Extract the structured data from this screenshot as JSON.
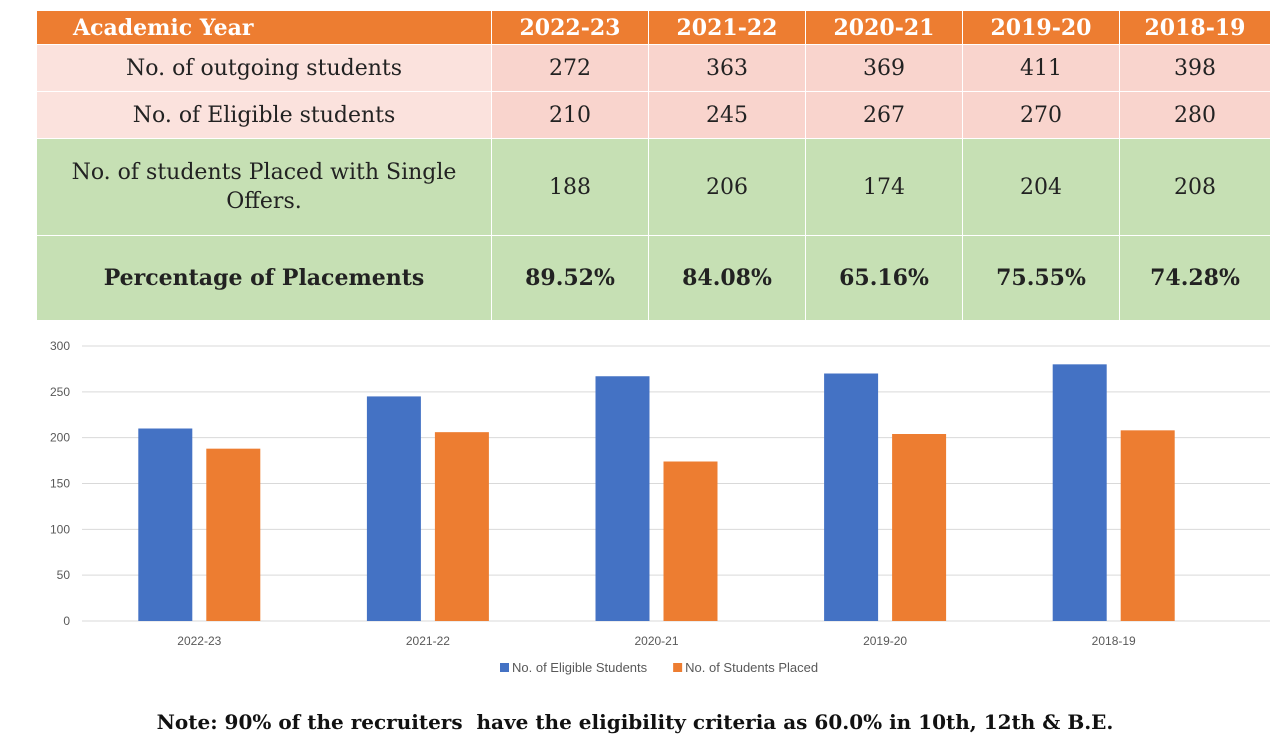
{
  "table": {
    "header_label": "Academic Year",
    "years": [
      "2022-23",
      "2021-22",
      "2020-21",
      "2019-20",
      "2018-19"
    ],
    "rows": [
      {
        "label": "No. of outgoing students",
        "values": [
          "272",
          "363",
          "369",
          "411",
          "398"
        ]
      },
      {
        "label": "No. of Eligible students",
        "values": [
          "210",
          "245",
          "267",
          "270",
          "280"
        ]
      },
      {
        "label_lines": [
          "No. of students Placed with Single",
          "Offers."
        ],
        "values": [
          "188",
          "206",
          "174",
          "204",
          "208"
        ]
      },
      {
        "label": "Percentage of Placements",
        "values": [
          "89.52%",
          "84.08%",
          "65.16%",
          "75.55%",
          "74.28%"
        ]
      }
    ]
  },
  "chart_data": {
    "type": "bar",
    "title": "",
    "xlabel": "",
    "ylabel": "",
    "categories": [
      "2022-23",
      "2021-22",
      "2020-21",
      "2019-20",
      "2018-19"
    ],
    "series": [
      {
        "name": "No. of Eligible Students",
        "color": "#4472c4",
        "values": [
          210,
          245,
          267,
          270,
          280
        ]
      },
      {
        "name": "No. of Students Placed",
        "color": "#ed7d31",
        "values": [
          188,
          206,
          174,
          204,
          208
        ]
      }
    ],
    "ylim": [
      0,
      300
    ],
    "yticks": [
      0,
      50,
      100,
      150,
      200,
      250,
      300
    ],
    "grid": true,
    "legend": "bottom"
  },
  "note": "Note: 90% of the recruiters  have the eligibility criteria as 60.0% in 10th, 12th & B.E."
}
